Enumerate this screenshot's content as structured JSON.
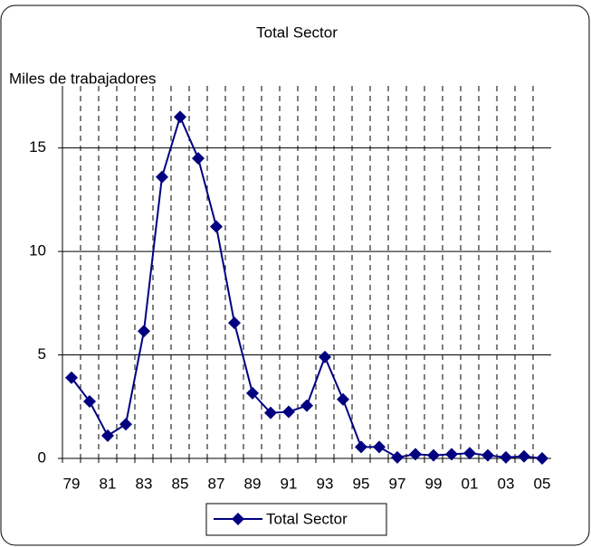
{
  "chart_data": {
    "type": "line",
    "title": "Total Sector",
    "y_label": "Miles de trabajadores",
    "categories": [
      "79",
      null,
      "81",
      null,
      "83",
      null,
      "85",
      null,
      "87",
      null,
      "89",
      null,
      "91",
      null,
      "93",
      null,
      "95",
      null,
      "97",
      null,
      "99",
      null,
      "01",
      null,
      "03",
      null,
      "05"
    ],
    "series": [
      {
        "name": "Total Sector",
        "color": "#000080",
        "values": [
          3.9,
          2.75,
          1.1,
          1.65,
          6.15,
          13.6,
          16.5,
          14.5,
          11.2,
          6.55,
          3.15,
          2.2,
          2.25,
          2.55,
          4.9,
          2.85,
          0.55,
          0.55,
          0.05,
          0.2,
          0.15,
          0.2,
          0.25,
          0.15,
          0.05,
          0.1,
          0.0
        ]
      }
    ],
    "ylim": [
      0,
      18
    ],
    "yticks": [
      0,
      5,
      10,
      15
    ],
    "grid": true,
    "legend": "bottom"
  }
}
